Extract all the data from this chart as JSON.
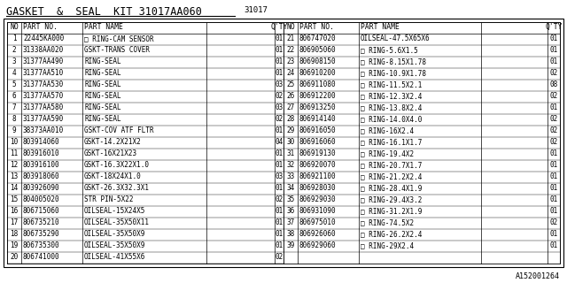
{
  "title": "GASKET  &  SEAL  KIT 31017AA060",
  "subtitle": "31017",
  "footer": "A152001264",
  "background_color": "#ffffff",
  "border_color": "#000000",
  "text_color": "#000000",
  "rows_left": [
    [
      "1",
      "22445KA000",
      "□ RING-CAM SENSOR",
      "01"
    ],
    [
      "2",
      "31338AA020",
      "GSKT-TRANS COVER",
      "01"
    ],
    [
      "3",
      "31377AA490",
      "RING-SEAL",
      "01"
    ],
    [
      "4",
      "31377AA510",
      "RING-SEAL",
      "01"
    ],
    [
      "5",
      "31377AA530",
      "RING-SEAL",
      "03"
    ],
    [
      "6",
      "31377AA570",
      "RING-SEAL",
      "02"
    ],
    [
      "7",
      "31377AA580",
      "RING-SEAL",
      "03"
    ],
    [
      "8",
      "31377AA590",
      "RING-SEAL",
      "02"
    ],
    [
      "9",
      "38373AA010",
      "GSKT-COV ATF FLTR",
      "01"
    ],
    [
      "10",
      "803914060",
      "GSKT-14.2X21X2",
      "04"
    ],
    [
      "11",
      "803916010",
      "GSKT-16X21X23",
      "01"
    ],
    [
      "12",
      "803916100",
      "GSKT-16.3X22X1.0",
      "01"
    ],
    [
      "13",
      "803918060",
      "GSKT-18X24X1.0",
      "03"
    ],
    [
      "14",
      "803926090",
      "GSKT-26.3X32.3X1",
      "01"
    ],
    [
      "15",
      "804005020",
      "STR PIN-5X22",
      "02"
    ],
    [
      "16",
      "806715060",
      "OILSEAL-15X24X5",
      "01"
    ],
    [
      "17",
      "806735210",
      "OILSEAL-35X50X11",
      "01"
    ],
    [
      "18",
      "806735290",
      "OILSEAL-35X50X9",
      "01"
    ],
    [
      "19",
      "806735300",
      "OILSEAL-35X50X9",
      "01"
    ],
    [
      "20",
      "806741000",
      "OILSEAL-41X55X6",
      "02"
    ]
  ],
  "rows_right": [
    [
      "21",
      "806747020",
      "OILSEAL-47.5X65X6",
      "01"
    ],
    [
      "22",
      "806905060",
      "□ RING-5.6X1.5",
      "01"
    ],
    [
      "23",
      "806908150",
      "□ RING-8.15X1.78",
      "01"
    ],
    [
      "24",
      "806910200",
      "□ RING-10.9X1.78",
      "02"
    ],
    [
      "25",
      "806911080",
      "□ RING-11.5X2.1",
      "08"
    ],
    [
      "26",
      "806912200",
      "□ RING-12.3X2.4",
      "02"
    ],
    [
      "27",
      "806913250",
      "□ RING-13.8X2.4",
      "01"
    ],
    [
      "28",
      "806914140",
      "□ RING-14.0X4.0",
      "02"
    ],
    [
      "29",
      "806916050",
      "□ RING-16X2.4",
      "02"
    ],
    [
      "30",
      "806916060",
      "□ RING-16.1X1.7",
      "02"
    ],
    [
      "31",
      "806919130",
      "□ RING-19.4X2",
      "01"
    ],
    [
      "32",
      "806920070",
      "□ RING-20.7X1.7",
      "01"
    ],
    [
      "33",
      "806921100",
      "□ RING-21.2X2.4",
      "01"
    ],
    [
      "34",
      "806928030",
      "□ RING-28.4X1.9",
      "01"
    ],
    [
      "35",
      "806929030",
      "□ RING-29.4X3.2",
      "01"
    ],
    [
      "36",
      "806931090",
      "□ RING-31.2X1.9",
      "01"
    ],
    [
      "37",
      "806975010",
      "□ RING-74.5X2",
      "02"
    ],
    [
      "38",
      "806926060",
      "□ RING-26.2X2.4",
      "01"
    ],
    [
      "39",
      "806929060",
      "□ RING-29X2.4",
      "01"
    ]
  ],
  "title_fontsize": 8.5,
  "subtitle_fontsize": 6.5,
  "header_fontsize": 5.8,
  "cell_fontsize": 5.5,
  "footer_fontsize": 6.0
}
